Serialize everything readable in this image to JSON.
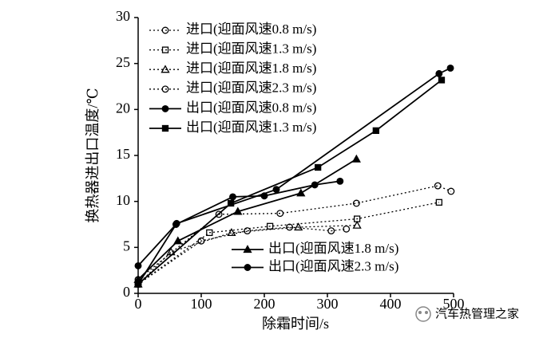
{
  "chart_data": {
    "type": "line",
    "x_label": "除霜时间/s",
    "y_label": "换热器进出口温度/℃",
    "xlim": [
      0,
      500
    ],
    "xticks": [
      0,
      100,
      200,
      300,
      400,
      500
    ],
    "ylim": [
      0,
      30
    ],
    "yticks": [
      0,
      5,
      10,
      15,
      20,
      25,
      30
    ],
    "series": [
      {
        "name": "进口(迎面风速0.8 m/s)",
        "color": "#000000",
        "marker": "circle",
        "marker_fill": "none",
        "line_style": "dotted",
        "x": [
          0,
          100,
          173,
          240,
          306,
          330
        ],
        "values": [
          1,
          5.7,
          6.8,
          7.2,
          6.8,
          7
        ]
      },
      {
        "name": "进口(迎面风速1.3 m/s)",
        "color": "#000000",
        "marker": "square",
        "marker_fill": "none",
        "line_style": "dotted",
        "x": [
          0,
          113,
          209,
          347,
          477
        ],
        "values": [
          1,
          6.6,
          7.3,
          8.1,
          9.9
        ]
      },
      {
        "name": "进口(迎面风速1.8 m/s)",
        "color": "#000000",
        "marker": "triangle",
        "marker_fill": "none",
        "line_style": "dotted",
        "x": [
          0,
          52,
          148,
          254,
          347
        ],
        "values": [
          1,
          4.5,
          6.6,
          7.2,
          7.4
        ]
      },
      {
        "name": "进口(迎面风速2.3 m/s)",
        "color": "#000000",
        "marker": "circle",
        "marker_fill": "none",
        "line_style": "dotted",
        "x": [
          0,
          128,
          225,
          346,
          475,
          496
        ],
        "values": [
          1.5,
          8.6,
          8.7,
          9.8,
          11.7,
          11.1
        ]
      },
      {
        "name": "出口(迎面风速0.8 m/s)",
        "color": "#000000",
        "marker": "circle",
        "marker_fill": "#000000",
        "line_style": "solid",
        "x": [
          0,
          61,
          219,
          477,
          495
        ],
        "values": [
          1,
          7.6,
          11.3,
          23.9,
          24.5
        ]
      },
      {
        "name": "出口(迎面风速1.3 m/s)",
        "color": "#000000",
        "marker": "square",
        "marker_fill": "#000000",
        "line_style": "solid",
        "x": [
          0,
          147,
          285,
          377,
          481
        ],
        "values": [
          1,
          9.8,
          13.7,
          17.7,
          23.2
        ]
      },
      {
        "name": "出口(迎面风速1.8 m/s)",
        "color": "#000000",
        "marker": "triangle",
        "marker_fill": "#000000",
        "line_style": "solid",
        "x": [
          0,
          63,
          158,
          258,
          346
        ],
        "values": [
          1.5,
          5.7,
          8.9,
          10.9,
          14.6
        ]
      },
      {
        "name": "出口(迎面风速2.3 m/s)",
        "color": "#000000",
        "marker": "circle",
        "marker_fill": "#000000",
        "line_style": "solid",
        "x": [
          0,
          60,
          150,
          200,
          280,
          320
        ],
        "values": [
          3,
          7.5,
          10.5,
          10.6,
          11.8,
          12.2
        ]
      }
    ],
    "watermark": "汽车热管理之家"
  }
}
